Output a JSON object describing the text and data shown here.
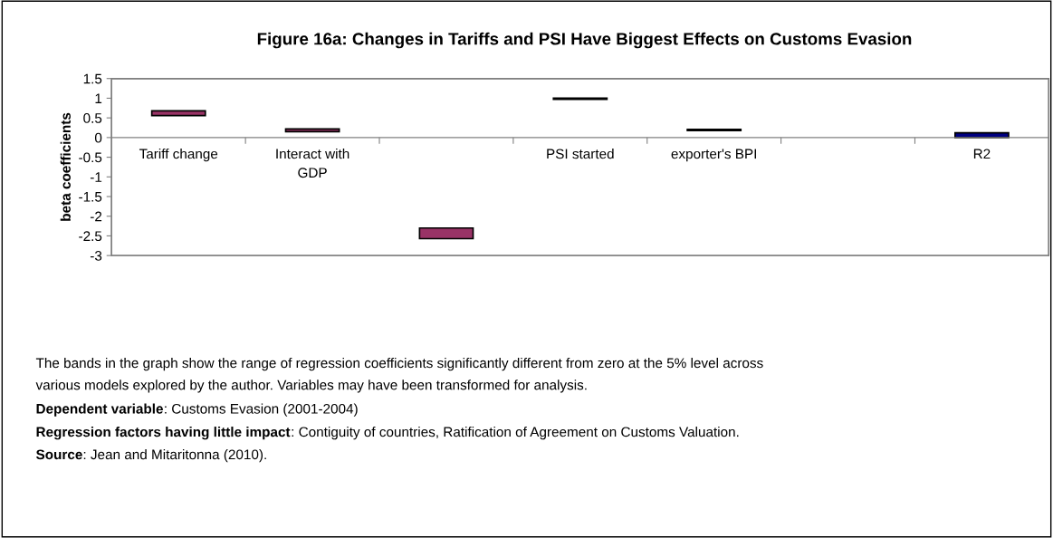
{
  "chart_data": {
    "type": "bar",
    "title": "Figure 16a: Changes in Tariffs and PSI Have Biggest Effects on Customs Evasion",
    "ylabel": "beta coefficients",
    "categories": [
      "Tariff change",
      "Interact with\nGDP",
      null,
      "PSI started",
      "exporter's BPI",
      null,
      "R2"
    ],
    "base": [
      0.56,
      0.15,
      -2.57,
      0.97,
      0.18,
      null,
      0
    ],
    "values": [
      0.12,
      0.07,
      0.27,
      0.03,
      0.03,
      null,
      0.12
    ],
    "colors": [
      "#993366",
      "#993366",
      "#993366",
      "#000000",
      "#000000",
      "#993366",
      "#000080"
    ],
    "ylim": [
      -3,
      1.5
    ],
    "yticks": [
      -3,
      -2.5,
      -2,
      -1.5,
      -1,
      -0.5,
      0,
      0.5,
      1,
      1.5
    ],
    "grid": false,
    "legend": false,
    "annotations": [
      "The bands in the graph show the range of regression coefficients significantly different from zero at the 5% level across\nvarious models explored by the author. Variables may have been transformed for analysis.",
      "Dependent variable: Customs Evasion (2001-2004)",
      "Regression factors having little impact: Contiguity of countries, Ratification of Agreement on Customs Valuation.",
      "Source: Jean and Mitaritonna (2010)."
    ]
  }
}
